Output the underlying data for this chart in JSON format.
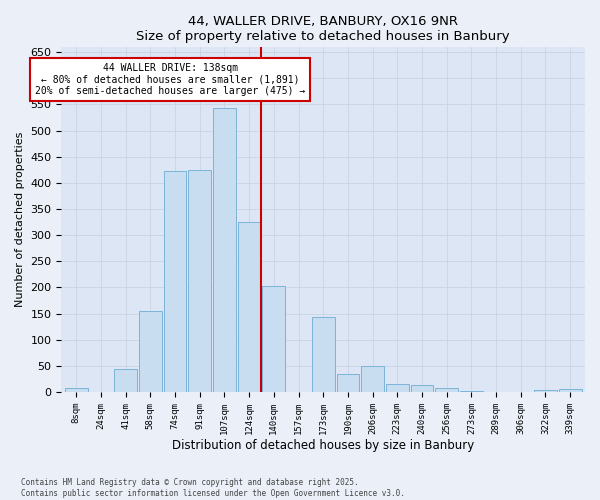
{
  "title": "44, WALLER DRIVE, BANBURY, OX16 9NR",
  "subtitle": "Size of property relative to detached houses in Banbury",
  "xlabel": "Distribution of detached houses by size in Banbury",
  "ylabel": "Number of detached properties",
  "bar_labels": [
    "8sqm",
    "24sqm",
    "41sqm",
    "58sqm",
    "74sqm",
    "91sqm",
    "107sqm",
    "124sqm",
    "140sqm",
    "157sqm",
    "173sqm",
    "190sqm",
    "206sqm",
    "223sqm",
    "240sqm",
    "256sqm",
    "273sqm",
    "289sqm",
    "306sqm",
    "322sqm",
    "339sqm"
  ],
  "bar_values": [
    8,
    0,
    43,
    155,
    422,
    424,
    544,
    325,
    203,
    0,
    143,
    35,
    50,
    15,
    13,
    7,
    2,
    0,
    0,
    3,
    5
  ],
  "bar_color": "#c9ddf0",
  "bar_edge_color": "#7bb3d8",
  "vline_index": 8,
  "vline_color": "#cc0000",
  "annotation_title": "44 WALLER DRIVE: 138sqm",
  "annotation_line1": "← 80% of detached houses are smaller (1,891)",
  "annotation_line2": "20% of semi-detached houses are larger (475) →",
  "annotation_box_facecolor": "#ffffff",
  "annotation_box_edgecolor": "#cc0000",
  "ylim": [
    0,
    660
  ],
  "yticks": [
    0,
    50,
    100,
    150,
    200,
    250,
    300,
    350,
    400,
    450,
    500,
    550,
    600,
    650
  ],
  "grid_color": "#c8d4e8",
  "plot_bg": "#dde6f4",
  "fig_bg": "#eaeff8",
  "footer_line1": "Contains HM Land Registry data © Crown copyright and database right 2025.",
  "footer_line2": "Contains public sector information licensed under the Open Government Licence v3.0."
}
